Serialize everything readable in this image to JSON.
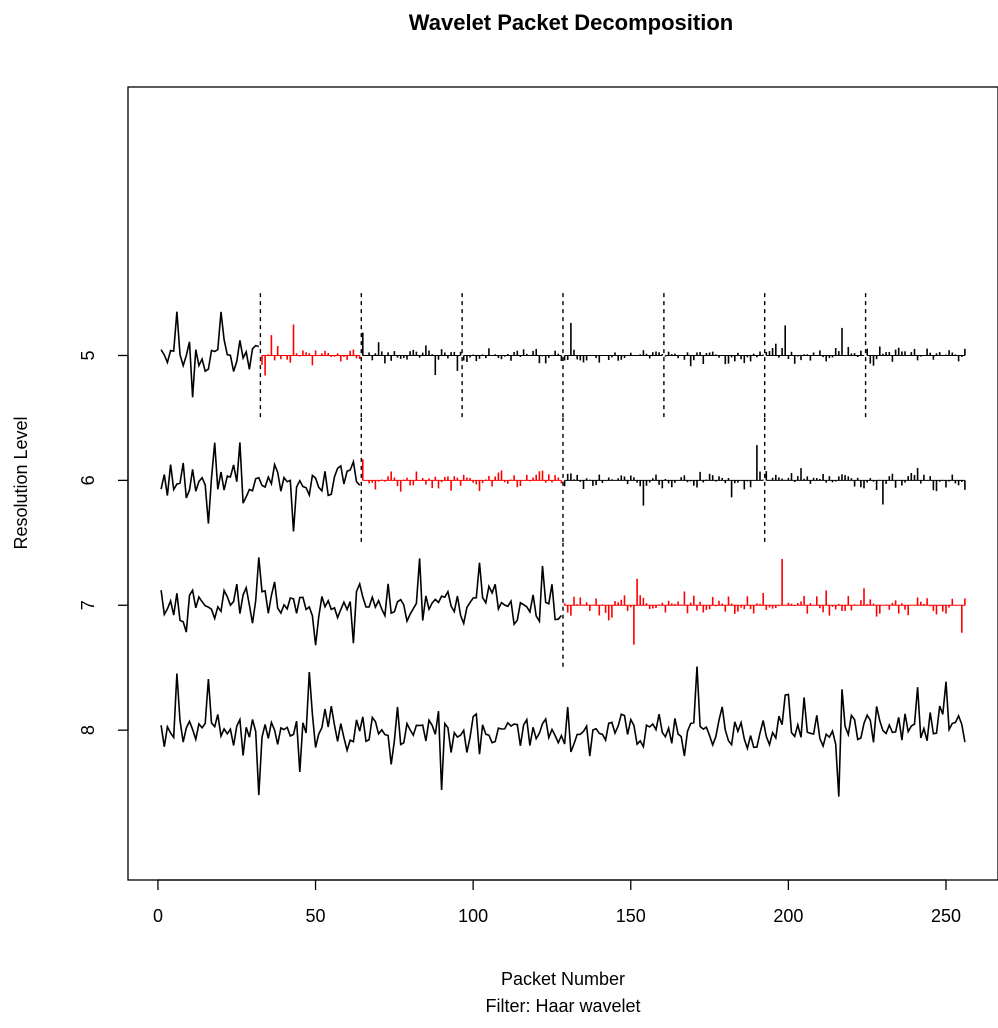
{
  "chart_data": {
    "type": "line",
    "title": "Wavelet Packet Decomposition",
    "xlabel": "Packet Number",
    "sublabel": "Filter:  Haar wavelet",
    "ylabel": "Resolution Level",
    "xlim": [
      -9.5,
      266.5
    ],
    "ylim": [
      2.85,
      9.2
    ],
    "x_ticks": [
      0,
      50,
      100,
      150,
      200,
      250
    ],
    "y_ticks": [
      5,
      6,
      7,
      8
    ],
    "grid": false,
    "colors": {
      "line": "#000000",
      "highlight": "#ff0000",
      "divider": "#000000"
    },
    "levels": [
      {
        "level": 5,
        "baseline": 5,
        "n_packets": 8,
        "packet_size": 32,
        "dividers": [
          32.5,
          64.5,
          96.5,
          128.5,
          160.5,
          192.5,
          224.5
        ],
        "divider_half_height": 0.5,
        "highlight_packet": 2,
        "amplitude": 0.4,
        "seed": 13
      },
      {
        "level": 6,
        "baseline": 6,
        "n_packets": 4,
        "packet_size": 64,
        "dividers": [
          64.5,
          128.5,
          192.5
        ],
        "divider_half_height": 0.5,
        "highlight_packet": 2,
        "amplitude": 0.45,
        "seed": 29
      },
      {
        "level": 7,
        "baseline": 7,
        "n_packets": 2,
        "packet_size": 128,
        "dividers": [
          128.5
        ],
        "divider_half_height": 0.5,
        "highlight_packet": 2,
        "amplitude": 0.55,
        "seed": 47
      },
      {
        "level": 8,
        "baseline": 8,
        "n_packets": 1,
        "packet_size": 256,
        "dividers": [],
        "divider_half_height": 0.5,
        "highlight_packet": 0,
        "amplitude": 0.5,
        "seed": 71
      }
    ],
    "n_points": 256
  }
}
